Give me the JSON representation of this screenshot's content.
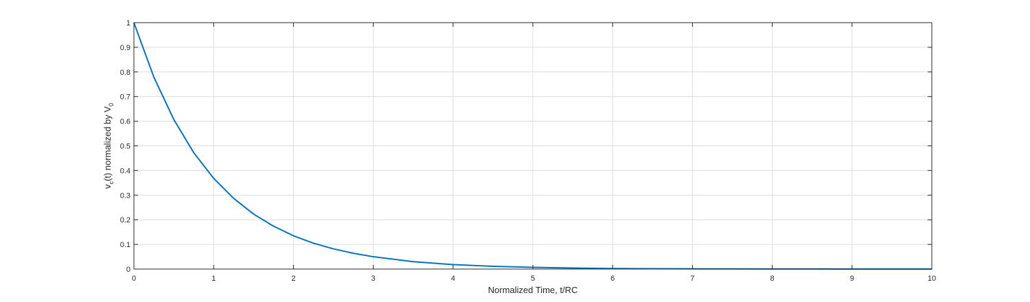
{
  "chart_data": {
    "type": "line",
    "title": "",
    "xlabel": "Normalized Time, t/RC",
    "ylabel": {
      "prefix": "v",
      "prefix_sub": "c",
      "middle": "(t) normalized by V",
      "suffix_sub": "0"
    },
    "xlim": [
      0,
      10
    ],
    "ylim": [
      0,
      1
    ],
    "xticks": [
      "0",
      "1",
      "2",
      "3",
      "4",
      "5",
      "6",
      "7",
      "8",
      "9",
      "10"
    ],
    "yticks": [
      "0",
      "0.1",
      "0.2",
      "0.3",
      "0.4",
      "0.5",
      "0.6",
      "0.7",
      "0.8",
      "0.9",
      "1"
    ],
    "grid": true,
    "series": [
      {
        "color": "#0072bd",
        "x": [
          0,
          0.25,
          0.5,
          0.75,
          1,
          1.25,
          1.5,
          1.75,
          2,
          2.25,
          2.5,
          2.75,
          3,
          3.5,
          4,
          4.5,
          5,
          5.5,
          6,
          6.5,
          7,
          7.5,
          8,
          8.5,
          9,
          9.5,
          10
        ],
        "y": [
          1,
          0.779,
          0.607,
          0.472,
          0.368,
          0.287,
          0.223,
          0.174,
          0.135,
          0.105,
          0.082,
          0.064,
          0.05,
          0.03,
          0.018,
          0.011,
          0.007,
          0.004,
          0.002,
          0.0015,
          0.0009,
          0.0006,
          0.0003,
          0.0002,
          0.0001,
          0.0001,
          5e-05
        ]
      }
    ]
  }
}
